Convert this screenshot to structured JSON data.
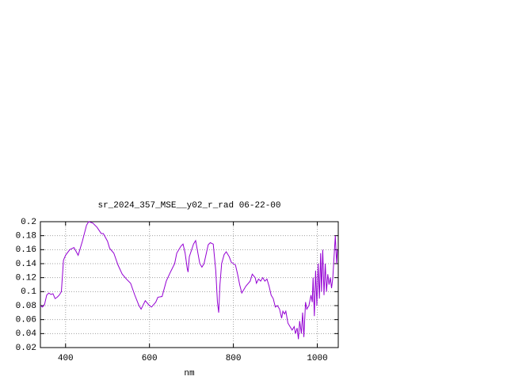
{
  "chart_data": {
    "type": "line",
    "title": "sr_2024_357_MSE__y02_r_rad 06-22-00",
    "x_label": "nm",
    "color": "#9400d3",
    "grid": true,
    "xlim": [
      340,
      1050
    ],
    "ylim": [
      0.02,
      0.2
    ],
    "xticks": [
      400,
      600,
      800,
      1000
    ],
    "yticks": [
      0.02,
      0.04,
      0.06,
      0.08,
      0.1,
      0.12,
      0.14,
      0.16,
      0.18,
      0.2
    ],
    "x": [
      340,
      345,
      350,
      355,
      360,
      365,
      370,
      375,
      380,
      385,
      390,
      395,
      400,
      410,
      420,
      430,
      440,
      450,
      455,
      465,
      475,
      485,
      490,
      500,
      505,
      515,
      525,
      535,
      545,
      555,
      565,
      575,
      580,
      590,
      600,
      605,
      615,
      620,
      630,
      640,
      650,
      660,
      665,
      675,
      680,
      685,
      690,
      692,
      695,
      705,
      710,
      720,
      725,
      730,
      740,
      745,
      752,
      758,
      762,
      765,
      768,
      772,
      778,
      783,
      790,
      795,
      805,
      810,
      815,
      820,
      830,
      840,
      845,
      852,
      855,
      860,
      865,
      870,
      875,
      880,
      885,
      890,
      895,
      900,
      905,
      910,
      915,
      918,
      922,
      925,
      930,
      935,
      940,
      945,
      948,
      952,
      955,
      958,
      962,
      965,
      968,
      972,
      975,
      980,
      985,
      988,
      990,
      993,
      996,
      999,
      1002,
      1005,
      1008,
      1010,
      1013,
      1016,
      1019,
      1022,
      1025,
      1028,
      1031,
      1034,
      1037,
      1040,
      1043,
      1046,
      1048
    ],
    "values": [
      0.08,
      0.078,
      0.082,
      0.095,
      0.098,
      0.096,
      0.097,
      0.09,
      0.092,
      0.095,
      0.1,
      0.145,
      0.152,
      0.16,
      0.163,
      0.152,
      0.172,
      0.195,
      0.2,
      0.198,
      0.192,
      0.183,
      0.183,
      0.172,
      0.162,
      0.155,
      0.138,
      0.125,
      0.118,
      0.112,
      0.095,
      0.08,
      0.075,
      0.087,
      0.08,
      0.078,
      0.085,
      0.092,
      0.093,
      0.115,
      0.128,
      0.14,
      0.155,
      0.165,
      0.168,
      0.155,
      0.133,
      0.128,
      0.15,
      0.168,
      0.173,
      0.14,
      0.135,
      0.14,
      0.167,
      0.17,
      0.168,
      0.13,
      0.085,
      0.07,
      0.11,
      0.14,
      0.153,
      0.157,
      0.15,
      0.142,
      0.138,
      0.125,
      0.11,
      0.098,
      0.108,
      0.115,
      0.125,
      0.12,
      0.112,
      0.118,
      0.115,
      0.12,
      0.115,
      0.118,
      0.108,
      0.095,
      0.09,
      0.078,
      0.08,
      0.075,
      0.062,
      0.072,
      0.068,
      0.072,
      0.055,
      0.05,
      0.045,
      0.05,
      0.04,
      0.048,
      0.032,
      0.058,
      0.04,
      0.07,
      0.035,
      0.085,
      0.075,
      0.08,
      0.095,
      0.085,
      0.12,
      0.065,
      0.13,
      0.08,
      0.14,
      0.09,
      0.155,
      0.1,
      0.16,
      0.095,
      0.14,
      0.1,
      0.125,
      0.11,
      0.12,
      0.105,
      0.12,
      0.15,
      0.18,
      0.14,
      0.16
    ]
  }
}
